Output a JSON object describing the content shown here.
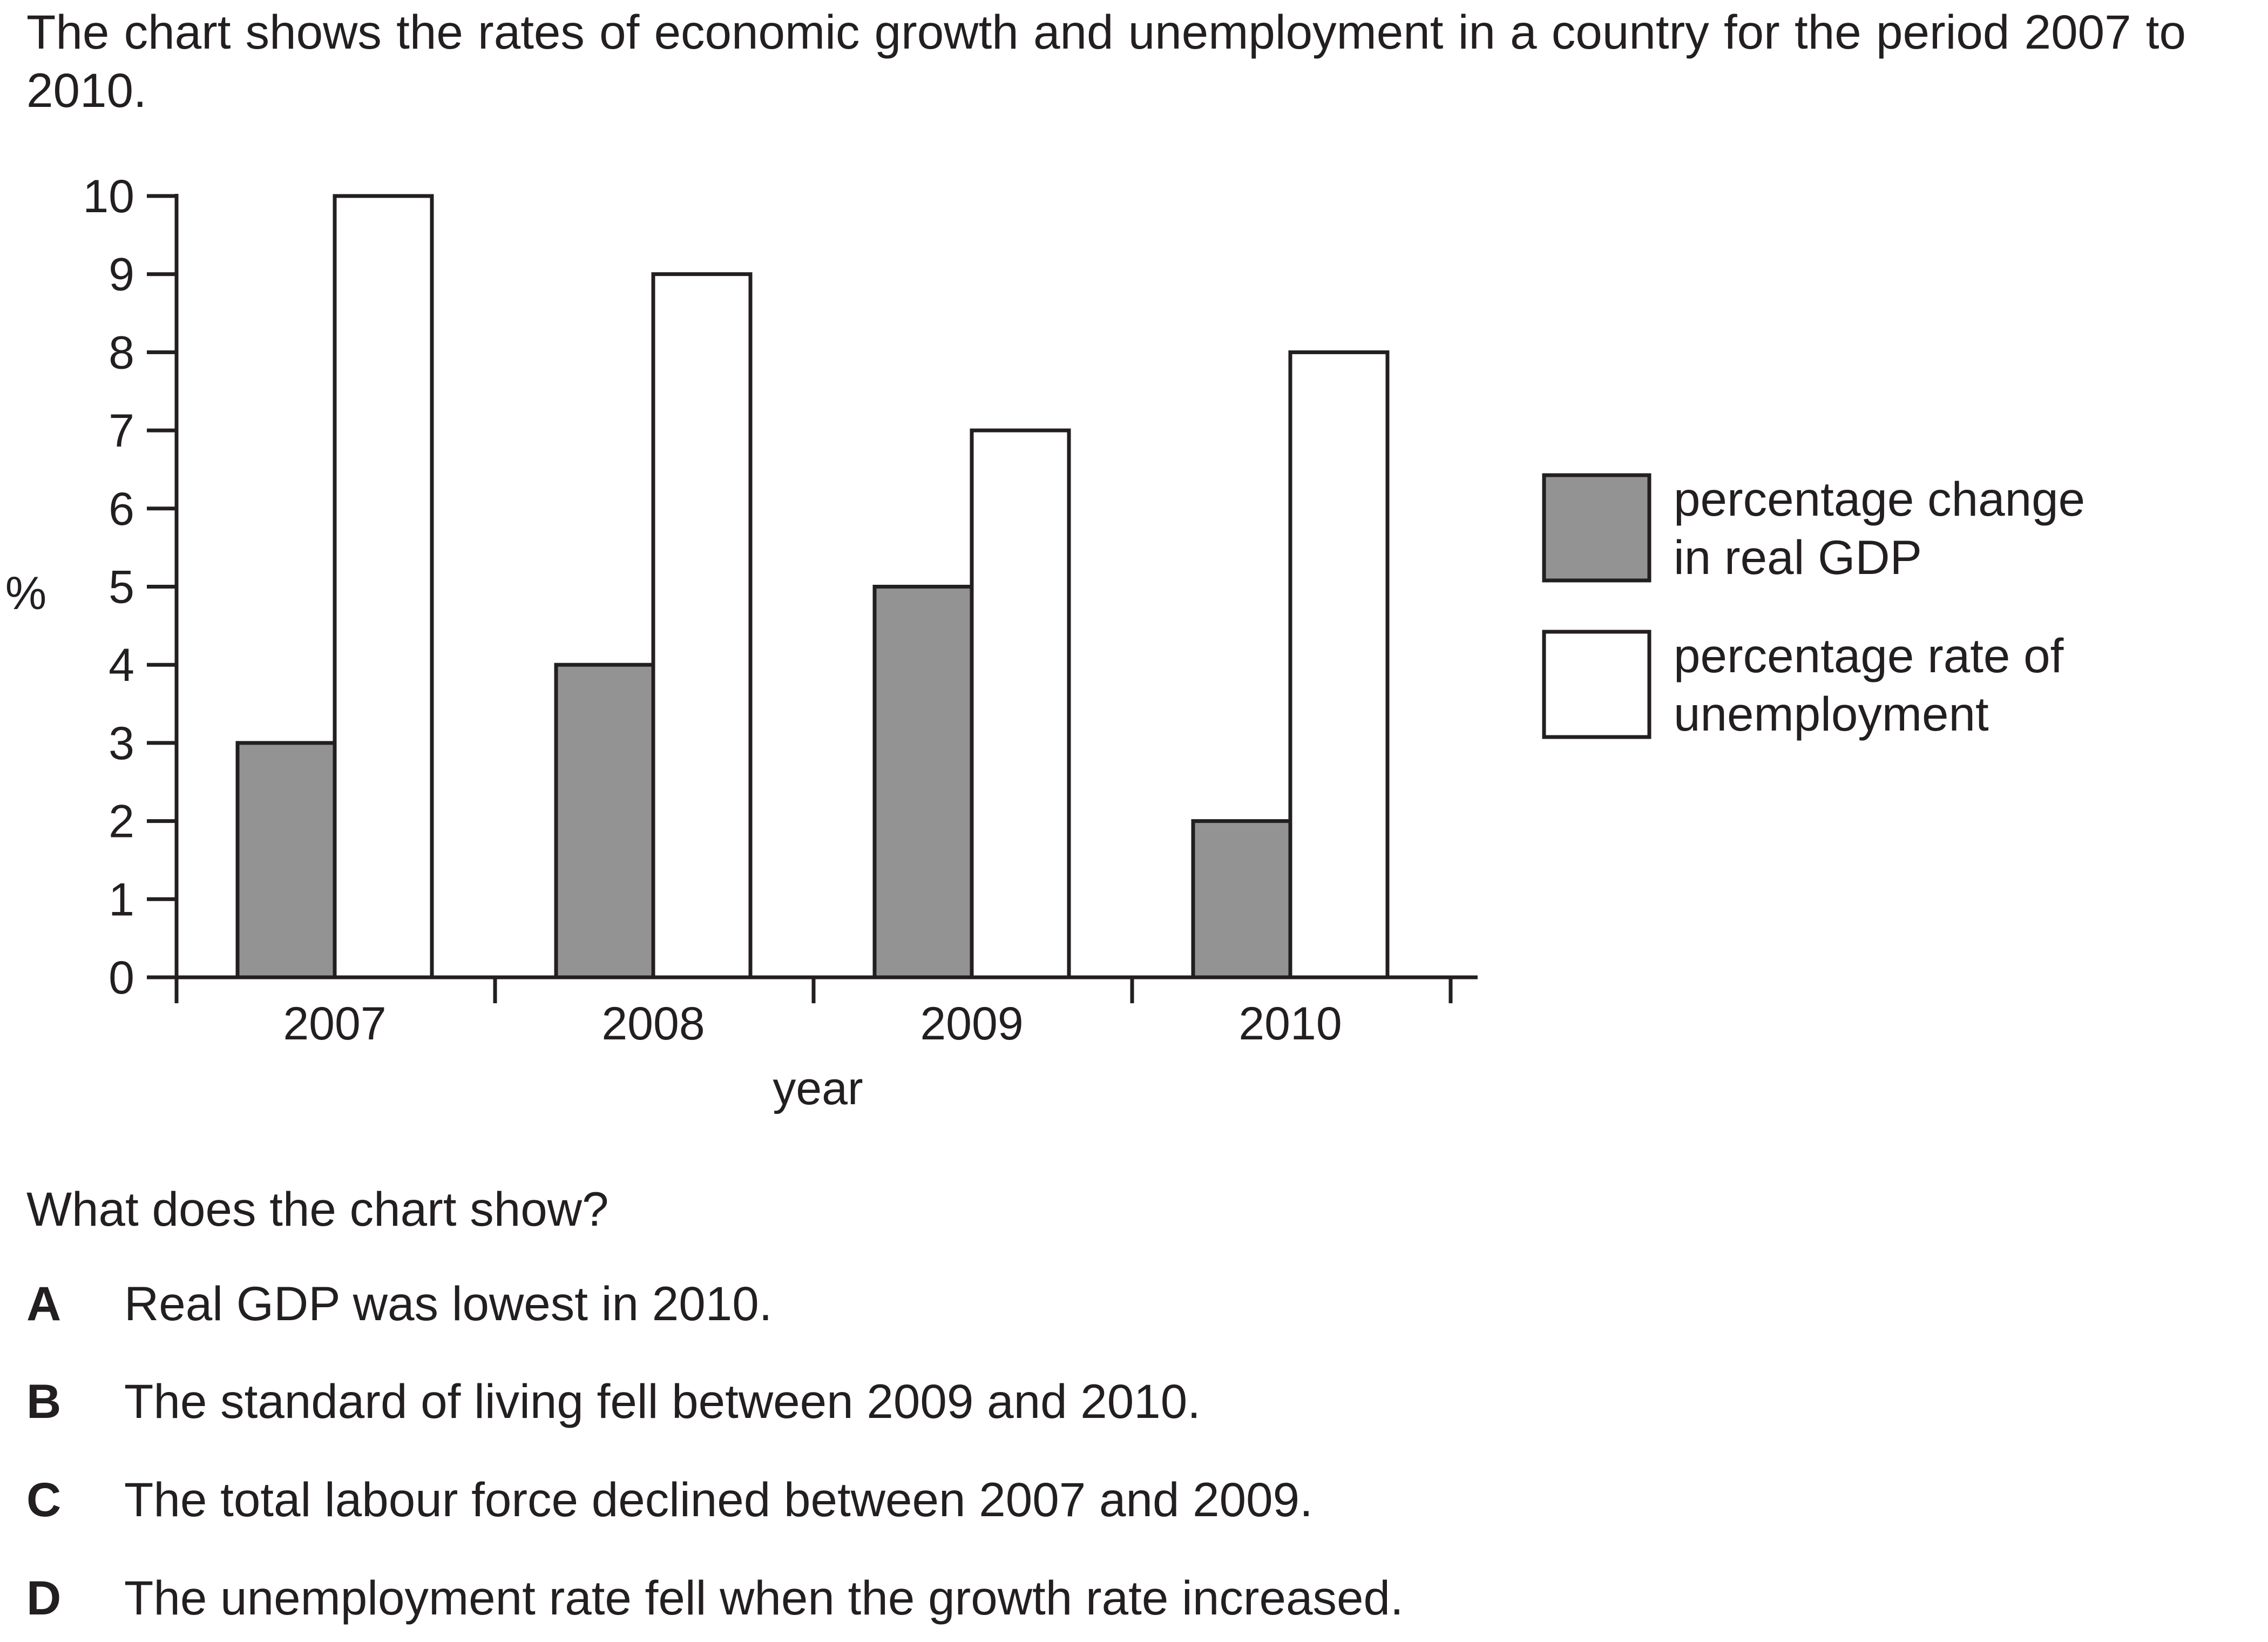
{
  "intro": "The chart shows the rates of economic growth and unemployment in a country for the period 2007 to 2010.",
  "question": "What does the chart show?",
  "options": [
    {
      "letter": "A",
      "text": "Real GDP was lowest in 2010."
    },
    {
      "letter": "B",
      "text": "The standard of living fell between 2009 and 2010."
    },
    {
      "letter": "C",
      "text": "The total labour force declined between 2007 and 2009."
    },
    {
      "letter": "D",
      "text": "The unemployment rate fell when the growth rate increased."
    }
  ],
  "colors": {
    "gdp": "#939393",
    "unemployment": "#ffffff",
    "stroke": "#231f20"
  },
  "chart_data": {
    "type": "bar",
    "title": "",
    "xlabel": "year",
    "ylabel": "%",
    "categories": [
      "2007",
      "2008",
      "2009",
      "2010"
    ],
    "ylim": [
      0,
      10
    ],
    "yticks": [
      0,
      1,
      2,
      3,
      4,
      5,
      6,
      7,
      8,
      9,
      10
    ],
    "grid": false,
    "legend_position": "right",
    "series": [
      {
        "name": "percentage change in real GDP",
        "legend_lines": [
          "percentage change",
          "in real GDP"
        ],
        "values": [
          3,
          4,
          5,
          2
        ]
      },
      {
        "name": "percentage rate of unemployment",
        "legend_lines": [
          "percentage rate of",
          "unemployment"
        ],
        "values": [
          10,
          9,
          7,
          8
        ]
      }
    ]
  }
}
